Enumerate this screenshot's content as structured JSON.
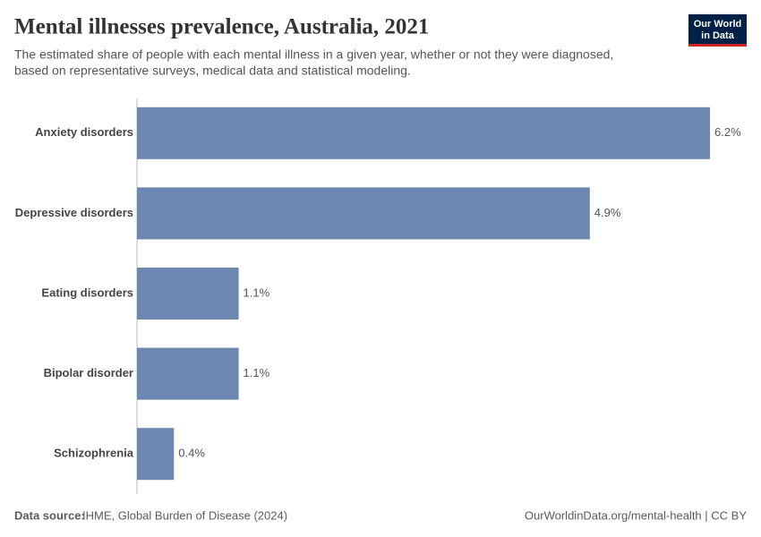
{
  "chart_data": {
    "type": "bar",
    "orientation": "horizontal",
    "title": "Mental illnesses prevalence, Australia, 2021",
    "subtitle": [
      "The estimated share of people with each mental illness in a given year, whether or not they were diagnosed,",
      "based on representative surveys, medical data and statistical modeling."
    ],
    "categories": [
      "Anxiety disorders",
      "Depressive disorders",
      "Eating disorders",
      "Bipolar disorder",
      "Schizophrenia"
    ],
    "values": [
      6.2,
      4.9,
      1.1,
      1.1,
      0.4
    ],
    "value_labels": [
      "6.2%",
      "4.9%",
      "1.1%",
      "1.1%",
      "0.4%"
    ],
    "color": "#6d87b0",
    "source_label": "Data source:",
    "source": "IHME, Global Burden of Disease (2024)",
    "footer_right": "OurWorldinData.org/mental-health | CC BY",
    "logo": [
      "Our World",
      "in Data"
    ]
  }
}
